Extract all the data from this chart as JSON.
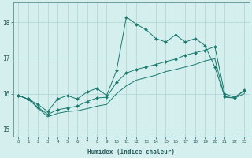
{
  "xlabel": "Humidex (Indice chaleur)",
  "ylabel": "",
  "bg_color": "#d5eeee",
  "grid_color": "#aed4d4",
  "line_color": "#1a7a6e",
  "xlim": [
    -0.5,
    23.5
  ],
  "ylim": [
    14.8,
    18.55
  ],
  "yticks": [
    15,
    16,
    17,
    18
  ],
  "xticks": [
    0,
    1,
    2,
    3,
    4,
    5,
    6,
    7,
    8,
    9,
    10,
    11,
    12,
    13,
    14,
    15,
    16,
    17,
    18,
    19,
    20,
    21,
    22,
    23
  ],
  "line1_x": [
    0,
    1,
    2,
    3,
    4,
    5,
    6,
    7,
    8,
    9,
    10,
    11,
    12,
    13,
    14,
    15,
    16,
    17,
    18,
    19,
    20,
    21,
    22,
    23
  ],
  "line1_y": [
    15.95,
    15.85,
    15.7,
    15.5,
    15.85,
    15.95,
    15.85,
    16.05,
    16.15,
    15.95,
    16.65,
    18.15,
    17.95,
    17.8,
    17.55,
    17.45,
    17.65,
    17.45,
    17.55,
    17.35,
    16.75,
    15.92,
    15.88,
    16.1
  ],
  "line2_x": [
    0,
    1,
    2,
    3,
    4,
    5,
    6,
    7,
    8,
    9,
    10,
    11,
    12,
    13,
    14,
    15,
    16,
    17,
    18,
    19,
    20,
    21,
    22,
    23
  ],
  "line2_y": [
    15.95,
    15.85,
    15.62,
    15.42,
    15.55,
    15.6,
    15.65,
    15.78,
    15.88,
    15.9,
    16.32,
    16.58,
    16.68,
    16.75,
    16.82,
    16.9,
    16.97,
    17.08,
    17.15,
    17.22,
    17.32,
    16.0,
    15.9,
    16.08
  ],
  "line3_x": [
    0,
    1,
    2,
    3,
    4,
    5,
    6,
    7,
    8,
    9,
    10,
    11,
    12,
    13,
    14,
    15,
    16,
    17,
    18,
    19,
    20,
    21,
    22,
    23
  ],
  "line3_y": [
    15.95,
    15.85,
    15.6,
    15.35,
    15.45,
    15.5,
    15.52,
    15.58,
    15.65,
    15.7,
    16.0,
    16.22,
    16.38,
    16.45,
    16.52,
    16.62,
    16.68,
    16.75,
    16.82,
    16.92,
    16.98,
    15.9,
    15.88,
    16.0
  ]
}
